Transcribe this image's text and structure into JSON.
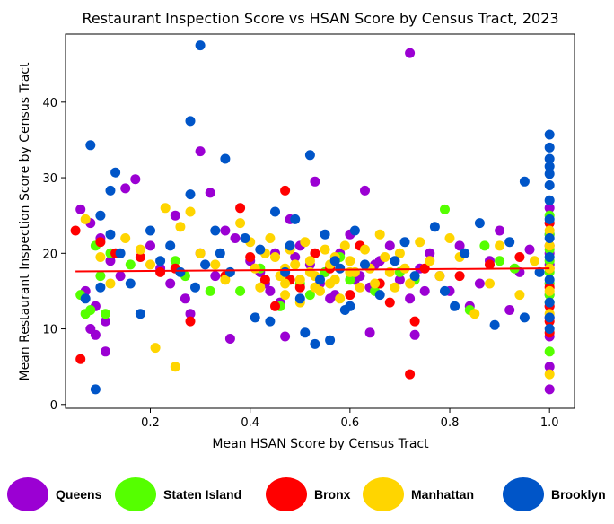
{
  "chart_data": {
    "type": "scatter",
    "title": "Restaurant Inspection Score vs HSAN Score by Census Tract, 2023",
    "xlabel": "Mean HSAN Score by Census Tract",
    "ylabel": "Mean Restaurant Inspection Score by Census Tract",
    "xlim": [
      0.03,
      1.05
    ],
    "ylim": [
      -0.5,
      49
    ],
    "xticks": [
      0.2,
      0.4,
      0.6,
      0.8,
      1.0
    ],
    "xtick_labels": [
      "0.2",
      "0.4",
      "0.6",
      "0.8",
      "1.0"
    ],
    "yticks": [
      0,
      10,
      20,
      30,
      40
    ],
    "ytick_labels": [
      "0",
      "10",
      "20",
      "30",
      "40"
    ],
    "grid": false,
    "legend_position": "bottom",
    "trend_line": {
      "color": "#ff0000",
      "points": [
        [
          0.05,
          17.6
        ],
        [
          1.0,
          18.0
        ]
      ]
    },
    "series": [
      {
        "name": "Queens",
        "color": "#9b00d3",
        "points": [
          [
            0.72,
            46.5
          ],
          [
            0.3,
            33.5
          ],
          [
            0.32,
            28.0
          ],
          [
            0.25,
            25.0
          ],
          [
            0.63,
            28.3
          ],
          [
            0.53,
            29.5
          ],
          [
            0.15,
            28.6
          ],
          [
            0.17,
            29.8
          ],
          [
            0.06,
            25.8
          ],
          [
            0.08,
            24.0
          ],
          [
            0.1,
            22.0
          ],
          [
            0.12,
            19.0
          ],
          [
            0.14,
            17.0
          ],
          [
            0.07,
            15.0
          ],
          [
            0.09,
            13.0
          ],
          [
            0.11,
            11.0
          ],
          [
            0.08,
            10.0
          ],
          [
            0.09,
            9.2
          ],
          [
            0.11,
            7.0
          ],
          [
            0.2,
            21.0
          ],
          [
            0.22,
            18.0
          ],
          [
            0.24,
            16.0
          ],
          [
            0.27,
            14.0
          ],
          [
            0.28,
            12.0
          ],
          [
            0.3,
            20.0
          ],
          [
            0.33,
            17.0
          ],
          [
            0.35,
            23.0
          ],
          [
            0.37,
            22.0
          ],
          [
            0.36,
            8.7
          ],
          [
            0.4,
            19.0
          ],
          [
            0.42,
            17.5
          ],
          [
            0.44,
            15.0
          ],
          [
            0.46,
            13.5
          ],
          [
            0.47,
            9.0
          ],
          [
            0.48,
            24.5
          ],
          [
            0.5,
            21.0
          ],
          [
            0.52,
            18.5
          ],
          [
            0.54,
            16.0
          ],
          [
            0.56,
            14.0
          ],
          [
            0.58,
            20.0
          ],
          [
            0.6,
            22.5
          ],
          [
            0.62,
            17.0
          ],
          [
            0.64,
            15.5
          ],
          [
            0.64,
            9.5
          ],
          [
            0.66,
            19.0
          ],
          [
            0.68,
            21.0
          ],
          [
            0.7,
            16.5
          ],
          [
            0.72,
            14.0
          ],
          [
            0.73,
            9.2
          ],
          [
            0.74,
            18.0
          ],
          [
            0.76,
            20.0
          ],
          [
            0.78,
            17.0
          ],
          [
            0.8,
            15.0
          ],
          [
            0.82,
            21.0
          ],
          [
            0.84,
            13.0
          ],
          [
            0.86,
            16.0
          ],
          [
            0.88,
            19.0
          ],
          [
            0.9,
            23.0
          ],
          [
            0.92,
            12.5
          ],
          [
            0.94,
            17.5
          ],
          [
            0.96,
            20.5
          ],
          [
            1.0,
            26.0
          ],
          [
            1.0,
            24.0
          ],
          [
            1.0,
            22.5
          ],
          [
            1.0,
            20.0
          ],
          [
            1.0,
            18.5
          ],
          [
            1.0,
            16.0
          ],
          [
            1.0,
            14.5
          ],
          [
            1.0,
            13.0
          ],
          [
            1.0,
            11.5
          ],
          [
            1.0,
            9.0
          ],
          [
            1.0,
            5.0
          ],
          [
            1.0,
            2.0
          ],
          [
            0.45,
            20.0
          ],
          [
            0.55,
            17.5
          ],
          [
            0.65,
            18.5
          ],
          [
            0.75,
            15.0
          ],
          [
            0.57,
            14.5
          ],
          [
            0.61,
            16.5
          ],
          [
            0.49,
            19.5
          ],
          [
            0.43,
            16.0
          ]
        ]
      },
      {
        "name": "Staten Island",
        "color": "#55ff00",
        "points": [
          [
            0.07,
            12.0
          ],
          [
            0.09,
            21.0
          ],
          [
            0.06,
            14.5
          ],
          [
            0.1,
            17.0
          ],
          [
            0.12,
            20.0
          ],
          [
            0.16,
            18.5
          ],
          [
            0.25,
            19.0
          ],
          [
            0.27,
            17.0
          ],
          [
            0.32,
            15.0
          ],
          [
            0.38,
            15.0
          ],
          [
            0.42,
            18.0
          ],
          [
            0.46,
            13.0
          ],
          [
            0.5,
            16.0
          ],
          [
            0.52,
            14.5
          ],
          [
            0.55,
            17.5
          ],
          [
            0.58,
            19.5
          ],
          [
            0.6,
            16.5
          ],
          [
            0.65,
            15.0
          ],
          [
            0.7,
            17.5
          ],
          [
            0.73,
            16.5
          ],
          [
            0.79,
            25.8
          ],
          [
            0.84,
            12.5
          ],
          [
            0.87,
            21.0
          ],
          [
            0.9,
            19.0
          ],
          [
            0.93,
            18.0
          ],
          [
            1.0,
            25.0
          ],
          [
            1.0,
            22.5
          ],
          [
            1.0,
            20.5
          ],
          [
            1.0,
            19.0
          ],
          [
            1.0,
            17.5
          ],
          [
            1.0,
            16.0
          ],
          [
            1.0,
            14.5
          ],
          [
            1.0,
            13.5
          ],
          [
            1.0,
            7.0
          ],
          [
            0.08,
            12.5
          ],
          [
            0.11,
            12.0
          ]
        ]
      },
      {
        "name": "Bronx",
        "color": "#ff0000",
        "points": [
          [
            0.06,
            6.0
          ],
          [
            0.05,
            23.0
          ],
          [
            0.1,
            21.5
          ],
          [
            0.13,
            20.0
          ],
          [
            0.18,
            19.5
          ],
          [
            0.22,
            17.5
          ],
          [
            0.25,
            18.0
          ],
          [
            0.28,
            11.0
          ],
          [
            0.35,
            17.0
          ],
          [
            0.4,
            19.5
          ],
          [
            0.43,
            16.5
          ],
          [
            0.45,
            13.0
          ],
          [
            0.47,
            28.3
          ],
          [
            0.5,
            15.5
          ],
          [
            0.53,
            20.0
          ],
          [
            0.56,
            18.0
          ],
          [
            0.6,
            14.5
          ],
          [
            0.62,
            21.0
          ],
          [
            0.66,
            16.0
          ],
          [
            0.68,
            13.5
          ],
          [
            0.72,
            4.0
          ],
          [
            0.73,
            11.0
          ],
          [
            0.75,
            18.0
          ],
          [
            0.82,
            17.0
          ],
          [
            0.88,
            18.5
          ],
          [
            0.94,
            19.5
          ],
          [
            1.0,
            24.0
          ],
          [
            1.0,
            21.0
          ],
          [
            1.0,
            18.0
          ],
          [
            1.0,
            15.5
          ],
          [
            1.0,
            13.0
          ],
          [
            1.0,
            11.0
          ],
          [
            1.0,
            9.5
          ],
          [
            0.38,
            26.0
          ],
          [
            0.48,
            16.5
          ]
        ]
      },
      {
        "name": "Manhattan",
        "color": "#ffd500",
        "points": [
          [
            0.25,
            5.0
          ],
          [
            0.21,
            7.5
          ],
          [
            0.07,
            24.5
          ],
          [
            0.1,
            19.5
          ],
          [
            0.12,
            16.0
          ],
          [
            0.15,
            22.0
          ],
          [
            0.18,
            20.5
          ],
          [
            0.2,
            18.5
          ],
          [
            0.23,
            26.0
          ],
          [
            0.26,
            23.5
          ],
          [
            0.28,
            25.5
          ],
          [
            0.3,
            20.0
          ],
          [
            0.33,
            18.5
          ],
          [
            0.35,
            16.5
          ],
          [
            0.38,
            24.0
          ],
          [
            0.4,
            21.5
          ],
          [
            0.41,
            18.0
          ],
          [
            0.42,
            15.5
          ],
          [
            0.44,
            22.0
          ],
          [
            0.45,
            19.5
          ],
          [
            0.46,
            17.0
          ],
          [
            0.47,
            14.5
          ],
          [
            0.48,
            20.5
          ],
          [
            0.49,
            18.5
          ],
          [
            0.5,
            16.5
          ],
          [
            0.5,
            13.5
          ],
          [
            0.51,
            21.5
          ],
          [
            0.52,
            19.0
          ],
          [
            0.53,
            17.0
          ],
          [
            0.54,
            15.0
          ],
          [
            0.55,
            20.5
          ],
          [
            0.56,
            18.5
          ],
          [
            0.57,
            16.5
          ],
          [
            0.58,
            14.0
          ],
          [
            0.59,
            21.0
          ],
          [
            0.6,
            19.0
          ],
          [
            0.61,
            17.5
          ],
          [
            0.62,
            15.5
          ],
          [
            0.63,
            20.5
          ],
          [
            0.64,
            18.0
          ],
          [
            0.65,
            16.0
          ],
          [
            0.66,
            22.5
          ],
          [
            0.67,
            19.5
          ],
          [
            0.68,
            17.5
          ],
          [
            0.69,
            15.5
          ],
          [
            0.7,
            20.0
          ],
          [
            0.71,
            18.0
          ],
          [
            0.72,
            16.0
          ],
          [
            0.74,
            21.5
          ],
          [
            0.76,
            19.0
          ],
          [
            0.78,
            17.0
          ],
          [
            0.8,
            22.0
          ],
          [
            0.82,
            19.5
          ],
          [
            0.85,
            12.0
          ],
          [
            0.88,
            16.0
          ],
          [
            0.9,
            21.0
          ],
          [
            0.94,
            14.5
          ],
          [
            0.97,
            19.0
          ],
          [
            1.0,
            23.0
          ],
          [
            1.0,
            21.0
          ],
          [
            1.0,
            18.0
          ],
          [
            1.0,
            15.0
          ],
          [
            1.0,
            12.0
          ],
          [
            1.0,
            4.0
          ],
          [
            0.43,
            20.0
          ],
          [
            0.47,
            18.0
          ],
          [
            0.53,
            15.5
          ],
          [
            0.57,
            19.5
          ],
          [
            0.47,
            16.0
          ],
          [
            0.52,
            17.5
          ],
          [
            0.56,
            16.0
          ],
          [
            0.6,
            17.5
          ]
        ]
      },
      {
        "name": "Brooklyn",
        "color": "#0055c8",
        "points": [
          [
            0.3,
            47.5
          ],
          [
            0.28,
            37.5
          ],
          [
            0.08,
            34.3
          ],
          [
            0.35,
            32.5
          ],
          [
            0.52,
            33.0
          ],
          [
            0.13,
            30.7
          ],
          [
            0.12,
            28.3
          ],
          [
            0.28,
            27.8
          ],
          [
            1.0,
            35.7
          ],
          [
            1.0,
            34.0
          ],
          [
            1.0,
            32.5
          ],
          [
            1.0,
            31.5
          ],
          [
            1.0,
            30.5
          ],
          [
            1.0,
            29.0
          ],
          [
            1.0,
            27.0
          ],
          [
            0.95,
            29.5
          ],
          [
            0.09,
            2.0
          ],
          [
            0.1,
            25.0
          ],
          [
            0.12,
            22.5
          ],
          [
            0.14,
            20.0
          ],
          [
            0.16,
            16.0
          ],
          [
            0.18,
            12.0
          ],
          [
            0.2,
            23.0
          ],
          [
            0.22,
            19.0
          ],
          [
            0.24,
            21.0
          ],
          [
            0.26,
            17.5
          ],
          [
            0.29,
            15.5
          ],
          [
            0.31,
            18.5
          ],
          [
            0.33,
            23.0
          ],
          [
            0.34,
            20.0
          ],
          [
            0.36,
            17.5
          ],
          [
            0.39,
            22.0
          ],
          [
            0.41,
            11.5
          ],
          [
            0.42,
            20.5
          ],
          [
            0.45,
            25.5
          ],
          [
            0.47,
            17.5
          ],
          [
            0.49,
            24.5
          ],
          [
            0.51,
            9.5
          ],
          [
            0.53,
            8.0
          ],
          [
            0.55,
            22.5
          ],
          [
            0.57,
            19.0
          ],
          [
            0.59,
            12.5
          ],
          [
            0.61,
            23.0
          ],
          [
            0.63,
            18.5
          ],
          [
            0.66,
            14.5
          ],
          [
            0.69,
            19.0
          ],
          [
            0.71,
            21.5
          ],
          [
            0.73,
            17.0
          ],
          [
            0.77,
            23.5
          ],
          [
            0.79,
            15.0
          ],
          [
            0.81,
            13.0
          ],
          [
            0.83,
            20.0
          ],
          [
            0.86,
            24.0
          ],
          [
            0.89,
            10.5
          ],
          [
            0.92,
            21.5
          ],
          [
            0.95,
            11.5
          ],
          [
            0.98,
            17.5
          ],
          [
            1.0,
            24.5
          ],
          [
            1.0,
            22.0
          ],
          [
            1.0,
            19.5
          ],
          [
            1.0,
            16.5
          ],
          [
            1.0,
            13.5
          ],
          [
            1.0,
            11.5
          ],
          [
            1.0,
            10.0
          ],
          [
            0.1,
            15.5
          ],
          [
            0.07,
            14.0
          ],
          [
            0.44,
            11.0
          ],
          [
            0.56,
            8.5
          ],
          [
            0.6,
            13.0
          ],
          [
            0.5,
            14.0
          ],
          [
            0.54,
            16.5
          ],
          [
            0.58,
            18.0
          ],
          [
            0.48,
            21.0
          ]
        ]
      }
    ]
  }
}
